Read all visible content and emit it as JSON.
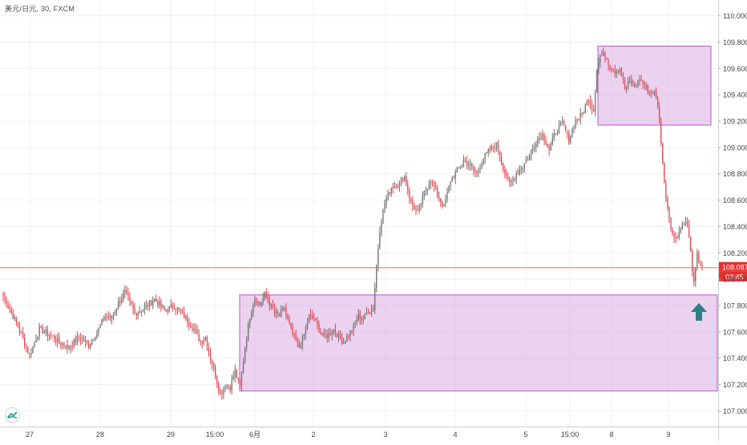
{
  "header": {
    "symbol_line": "美元/日元, 30, FXCM"
  },
  "icons": {
    "logo": "tradingview-logo-icon",
    "arrow": "up-arrow-icon"
  },
  "colors": {
    "up": "#6f6f6f",
    "down": "#e0464e",
    "zone_fill": "#d8a6e0",
    "zone_border": "#b55bc0",
    "price_line": "#e5714f",
    "price_tag": "#e5302f",
    "arrow": "#2a7f86"
  },
  "chart_data": {
    "type": "candlestick",
    "ylim": [
      106.88,
      110.12
    ],
    "y_ticks": [
      "110.000",
      "109.800",
      "109.600",
      "109.400",
      "109.200",
      "109.000",
      "108.800",
      "108.600",
      "108.400",
      "108.200",
      "108.000",
      "107.800",
      "107.600",
      "107.400",
      "107.200",
      "107.000"
    ],
    "x_ticks": [
      "27",
      "28",
      "29",
      "15:00",
      "6月",
      "2",
      "3",
      "4",
      "5",
      "15:00",
      "8",
      "9"
    ],
    "grid": true,
    "current_price": "108.087",
    "countdown": "03:45",
    "anchors": [
      [
        0,
        107.87
      ],
      [
        6,
        107.72
      ],
      [
        11,
        107.58
      ],
      [
        16,
        107.42
      ],
      [
        22,
        107.62
      ],
      [
        28,
        107.58
      ],
      [
        34,
        107.52
      ],
      [
        40,
        107.48
      ],
      [
        46,
        107.56
      ],
      [
        52,
        107.5
      ],
      [
        58,
        107.62
      ],
      [
        62,
        107.72
      ],
      [
        66,
        107.7
      ],
      [
        70,
        107.82
      ],
      [
        74,
        107.9
      ],
      [
        80,
        107.74
      ],
      [
        86,
        107.78
      ],
      [
        92,
        107.85
      ],
      [
        98,
        107.76
      ],
      [
        104,
        107.8
      ],
      [
        110,
        107.72
      ],
      [
        116,
        107.62
      ],
      [
        120,
        107.52
      ],
      [
        123,
        107.56
      ],
      [
        126,
        107.4
      ],
      [
        129,
        107.28
      ],
      [
        132,
        107.12
      ],
      [
        135,
        107.2
      ],
      [
        138,
        107.18
      ],
      [
        141,
        107.3
      ],
      [
        144,
        107.18
      ],
      [
        147,
        107.48
      ],
      [
        150,
        107.72
      ],
      [
        153,
        107.86
      ],
      [
        156,
        107.8
      ],
      [
        159,
        107.88
      ],
      [
        162,
        107.82
      ],
      [
        165,
        107.74
      ],
      [
        168,
        107.72
      ],
      [
        171,
        107.78
      ],
      [
        174,
        107.65
      ],
      [
        177,
        107.55
      ],
      [
        180,
        107.48
      ],
      [
        183,
        107.58
      ],
      [
        186,
        107.72
      ],
      [
        189,
        107.7
      ],
      [
        192,
        107.62
      ],
      [
        195,
        107.56
      ],
      [
        198,
        107.58
      ],
      [
        201,
        107.62
      ],
      [
        204,
        107.56
      ],
      [
        207,
        107.52
      ],
      [
        210,
        107.58
      ],
      [
        213,
        107.64
      ],
      [
        216,
        107.72
      ],
      [
        219,
        107.7
      ],
      [
        222,
        107.76
      ],
      [
        225,
        107.78
      ],
      [
        227,
        108.1
      ],
      [
        229,
        108.38
      ],
      [
        232,
        108.58
      ],
      [
        236,
        108.7
      ],
      [
        240,
        108.72
      ],
      [
        244,
        108.78
      ],
      [
        248,
        108.58
      ],
      [
        252,
        108.5
      ],
      [
        256,
        108.65
      ],
      [
        260,
        108.76
      ],
      [
        264,
        108.64
      ],
      [
        268,
        108.55
      ],
      [
        272,
        108.75
      ],
      [
        276,
        108.82
      ],
      [
        280,
        108.9
      ],
      [
        284,
        108.86
      ],
      [
        288,
        108.8
      ],
      [
        292,
        108.92
      ],
      [
        296,
        108.98
      ],
      [
        300,
        109.02
      ],
      [
        304,
        108.85
      ],
      [
        308,
        108.72
      ],
      [
        312,
        108.8
      ],
      [
        316,
        108.86
      ],
      [
        320,
        108.94
      ],
      [
        324,
        109.05
      ],
      [
        328,
        109.1
      ],
      [
        332,
        108.98
      ],
      [
        336,
        109.12
      ],
      [
        340,
        109.18
      ],
      [
        344,
        109.06
      ],
      [
        348,
        109.2
      ],
      [
        352,
        109.25
      ],
      [
        356,
        109.38
      ],
      [
        359,
        109.28
      ],
      [
        361,
        109.6
      ],
      [
        363,
        109.7
      ],
      [
        366,
        109.7
      ],
      [
        369,
        109.62
      ],
      [
        372,
        109.58
      ],
      [
        375,
        109.6
      ],
      [
        378,
        109.45
      ],
      [
        381,
        109.5
      ],
      [
        384,
        109.46
      ],
      [
        387,
        109.52
      ],
      [
        390,
        109.48
      ],
      [
        393,
        109.42
      ],
      [
        396,
        109.42
      ],
      [
        398,
        109.32
      ],
      [
        400,
        109.05
      ],
      [
        402,
        108.72
      ],
      [
        404,
        108.55
      ],
      [
        406,
        108.4
      ],
      [
        408,
        108.3
      ],
      [
        410,
        108.34
      ],
      [
        412,
        108.38
      ],
      [
        414,
        108.44
      ],
      [
        416,
        108.42
      ],
      [
        418,
        108.2
      ],
      [
        420,
        107.96
      ],
      [
        422,
        108.18
      ],
      [
        424,
        108.12
      ],
      [
        425,
        108.09
      ]
    ]
  }
}
